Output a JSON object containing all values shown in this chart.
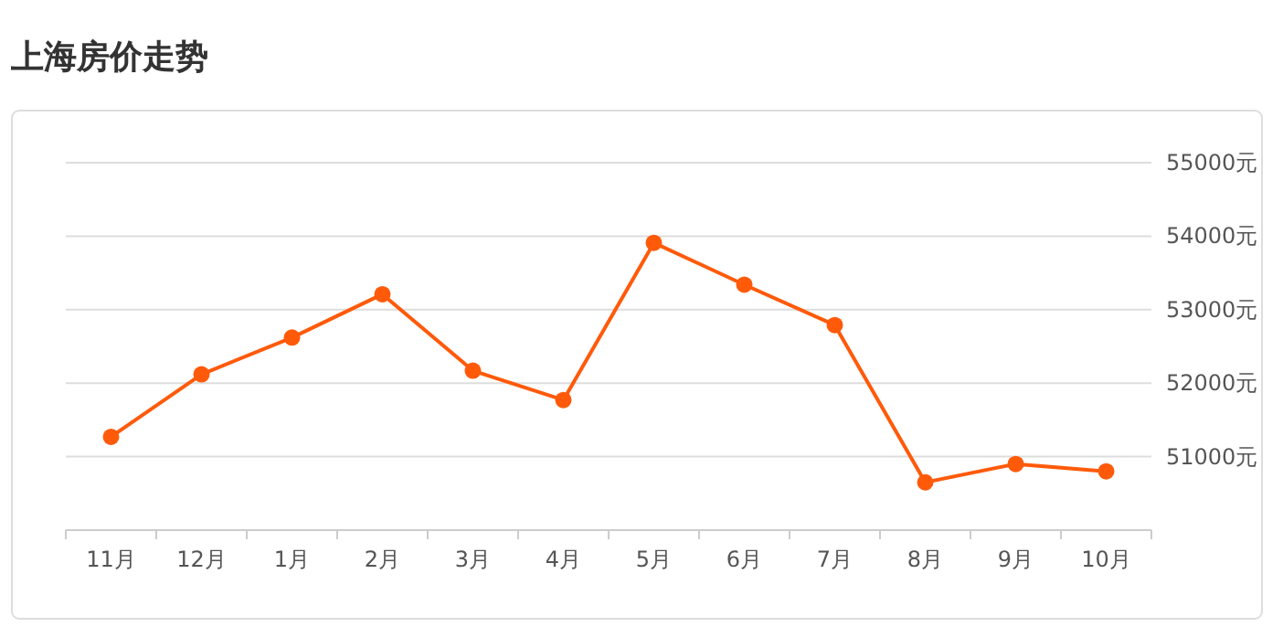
{
  "chart_data": {
    "type": "line",
    "title": "上海房价走势",
    "categories": [
      "11月",
      "12月",
      "1月",
      "2月",
      "3月",
      "4月",
      "5月",
      "6月",
      "7月",
      "8月",
      "9月",
      "10月"
    ],
    "series": [
      {
        "color": "#ff5a0a",
        "values": [
          51270,
          52120,
          52620,
          53210,
          52170,
          51770,
          53910,
          53340,
          52790,
          50650,
          50900,
          50800
        ]
      }
    ],
    "ylim": [
      50000,
      55000
    ],
    "yticks": [
      {
        "value": 51000,
        "label": "51000元"
      },
      {
        "value": 52000,
        "label": "52000元"
      },
      {
        "value": 53000,
        "label": "53000元"
      },
      {
        "value": 54000,
        "label": "54000元"
      },
      {
        "value": 55000,
        "label": "55000元"
      }
    ],
    "grid": "y",
    "marker": "circle"
  }
}
